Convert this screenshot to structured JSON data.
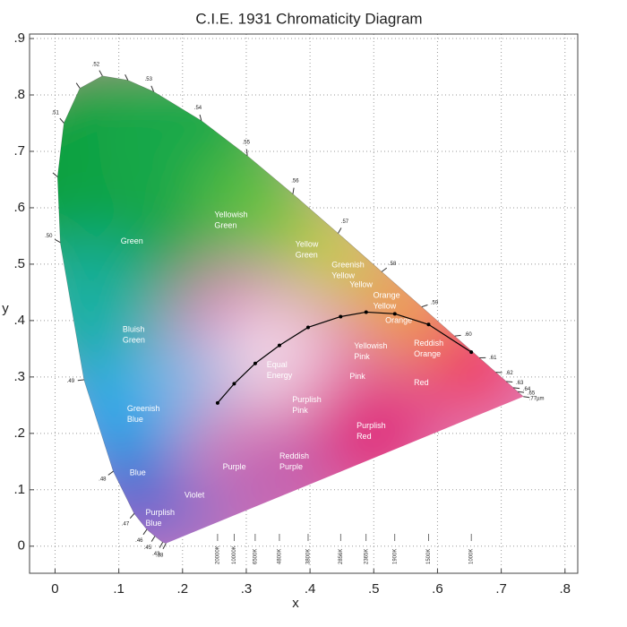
{
  "chart_data": {
    "type": "chromaticity",
    "title": "C.I.E. 1931 Chromaticity Diagram",
    "x_label": "x",
    "y_label": "y",
    "xlim": [
      -0.04,
      0.82
    ],
    "ylim": [
      -0.048,
      0.908
    ],
    "xticks": [
      0,
      {
        "value": 0.1,
        "label": ".1"
      },
      {
        "value": 0.2,
        "label": ".2"
      },
      {
        "value": 0.3,
        "label": ".3"
      },
      {
        "value": 0.4,
        "label": ".4"
      },
      {
        "value": 0.5,
        "label": ".5"
      },
      {
        "value": 0.6,
        "label": ".6"
      },
      {
        "value": 0.7,
        "label": ".7"
      },
      {
        "value": 0.8,
        "label": ".8"
      }
    ],
    "yticks": [
      0,
      {
        "value": 0.1,
        "label": ".1"
      },
      {
        "value": 0.2,
        "label": ".2"
      },
      {
        "value": 0.3,
        "label": ".3"
      },
      {
        "value": 0.4,
        "label": ".4"
      },
      {
        "value": 0.5,
        "label": ".5"
      },
      {
        "value": 0.6,
        "label": ".6"
      },
      {
        "value": 0.7,
        "label": ".7"
      },
      {
        "value": 0.8,
        "label": ".8"
      },
      {
        "value": 0.9,
        "label": ".9"
      }
    ],
    "grid": true,
    "spectral_locus": {
      "labels": [
        ".38",
        ".43",
        ".45",
        ".46",
        ".47",
        ".48",
        ".49",
        ".50",
        null,
        ".51",
        null,
        ".52",
        null,
        ".53",
        ".54",
        ".55",
        ".56",
        ".57",
        ".58",
        ".59",
        ".60",
        ".61",
        ".62",
        ".63",
        ".64",
        ".65",
        ".77µm"
      ],
      "x": [
        0.1741,
        0.1689,
        0.1566,
        0.144,
        0.1241,
        0.0913,
        0.0454,
        0.0082,
        0.0039,
        0.0139,
        0.0389,
        0.0743,
        0.1142,
        0.1547,
        0.2296,
        0.3016,
        0.3731,
        0.4441,
        0.5125,
        0.5752,
        0.627,
        0.6658,
        0.6915,
        0.7079,
        0.719,
        0.726,
        0.7347
      ],
      "y": [
        0.005,
        0.0069,
        0.0177,
        0.0297,
        0.0578,
        0.1327,
        0.295,
        0.5384,
        0.6548,
        0.7502,
        0.812,
        0.8338,
        0.8262,
        0.8059,
        0.7543,
        0.6923,
        0.6245,
        0.5547,
        0.4866,
        0.4242,
        0.3725,
        0.334,
        0.3083,
        0.292,
        0.2809,
        0.274,
        0.2653
      ]
    },
    "planckian_locus": {
      "color": "#000000",
      "labels": [
        "20000K",
        "10000K",
        "6500K",
        "4800K",
        "3800K",
        "2856K",
        "2365K",
        "1900K",
        "1500K",
        "1000K"
      ],
      "x": [
        0.255,
        0.281,
        0.314,
        0.352,
        0.397,
        0.448,
        0.488,
        0.533,
        0.586,
        0.653
      ],
      "y": [
        0.254,
        0.288,
        0.324,
        0.356,
        0.388,
        0.407,
        0.415,
        0.412,
        0.393,
        0.344
      ]
    },
    "regions": [
      {
        "lines": [
          "Green"
        ],
        "x": 0.103,
        "y": 0.54
      },
      {
        "lines": [
          "Yellowish",
          "Green"
        ],
        "x": 0.25,
        "y": 0.587
      },
      {
        "lines": [
          "Yellow",
          "Green"
        ],
        "x": 0.377,
        "y": 0.535
      },
      {
        "lines": [
          "Greenish",
          "Yellow"
        ],
        "x": 0.434,
        "y": 0.498
      },
      {
        "lines": [
          "Yellow"
        ],
        "x": 0.462,
        "y": 0.463
      },
      {
        "lines": [
          "Orange",
          "Yellow"
        ],
        "x": 0.499,
        "y": 0.444
      },
      {
        "lines": [
          "Orange"
        ],
        "x": 0.518,
        "y": 0.4
      },
      {
        "lines": [
          "Reddish",
          "Orange"
        ],
        "x": 0.563,
        "y": 0.359
      },
      {
        "lines": [
          "Yellowish",
          "Pink"
        ],
        "x": 0.469,
        "y": 0.354
      },
      {
        "lines": [
          "Pink"
        ],
        "x": 0.462,
        "y": 0.3
      },
      {
        "lines": [
          "Red"
        ],
        "x": 0.563,
        "y": 0.289
      },
      {
        "lines": [
          "Equal",
          "Energy"
        ],
        "x": 0.332,
        "y": 0.321
      },
      {
        "lines": [
          "Purplish",
          "Pink"
        ],
        "x": 0.372,
        "y": 0.259
      },
      {
        "lines": [
          "Purplish",
          "Red"
        ],
        "x": 0.473,
        "y": 0.213
      },
      {
        "lines": [
          "Bluish",
          "Green"
        ],
        "x": 0.106,
        "y": 0.384
      },
      {
        "lines": [
          "Greenish",
          "Blue"
        ],
        "x": 0.113,
        "y": 0.243
      },
      {
        "lines": [
          "Blue"
        ],
        "x": 0.117,
        "y": 0.13
      },
      {
        "lines": [
          "Violet"
        ],
        "x": 0.203,
        "y": 0.09
      },
      {
        "lines": [
          "Purple"
        ],
        "x": 0.263,
        "y": 0.14
      },
      {
        "lines": [
          "Reddish",
          "Purple"
        ],
        "x": 0.352,
        "y": 0.159
      },
      {
        "lines": [
          "Purplish",
          "Blue"
        ],
        "x": 0.142,
        "y": 0.059
      }
    ]
  }
}
